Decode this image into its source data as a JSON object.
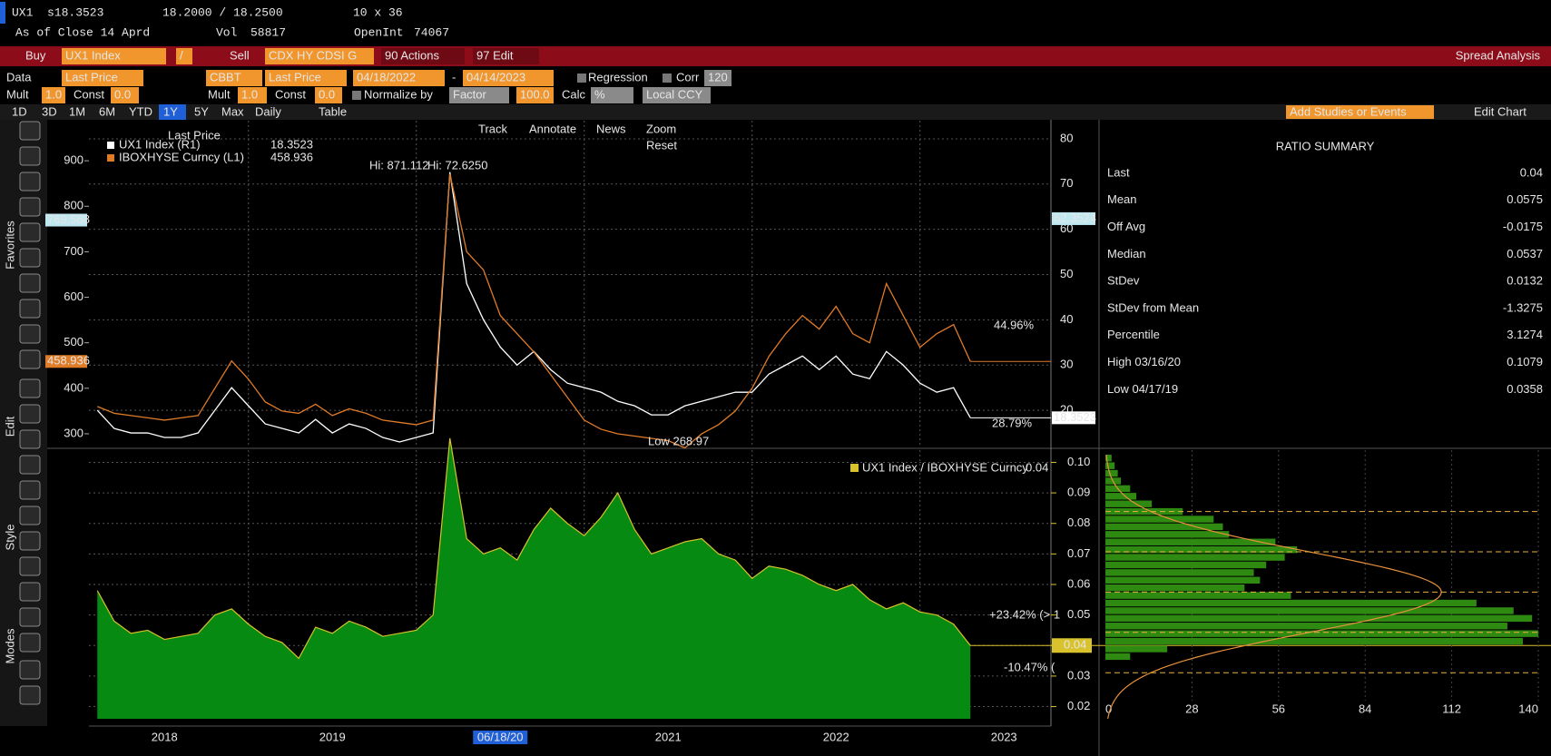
{
  "header": {
    "ticker": "UX1",
    "last": "s18.3523",
    "bid_ask": "18.2000 / 18.2500",
    "size": "10 x 36",
    "as_of": "As of Close 14 Aprd",
    "vol_label": "Vol",
    "vol": "58817",
    "openint_label": "OpenInt",
    "openint": "74067"
  },
  "toolbar": {
    "row_trade": [
      {
        "text": "Buy",
        "kind": "label"
      },
      {
        "text": "UX1 Index",
        "kind": "field"
      },
      {
        "text": "/",
        "kind": "field"
      },
      {
        "text": "Sell",
        "kind": "label"
      },
      {
        "text": "CDX HY CDSI G",
        "kind": "field"
      },
      {
        "text": "90 Actions",
        "kind": "button"
      },
      {
        "text": "97 Edit",
        "kind": "button"
      },
      {
        "text": "Spread Analysis",
        "kind": "label"
      }
    ],
    "row_data": [
      {
        "text": "Data",
        "kind": "key"
      },
      {
        "text": "Last Price",
        "kind": "field"
      },
      {
        "text": "CBBT",
        "kind": "field"
      },
      {
        "text": "Last Price",
        "kind": "field"
      },
      {
        "text": "04/18/2022",
        "kind": "field"
      },
      {
        "text": "-",
        "kind": "label"
      },
      {
        "text": "04/14/2023",
        "kind": "field"
      },
      {
        "text": "Regression",
        "kind": "label"
      },
      {
        "text": "Corr",
        "kind": "label"
      },
      {
        "text": "120",
        "kind": "grey"
      }
    ],
    "row_mult": [
      {
        "text": "Mult",
        "kind": "key"
      },
      {
        "text": "1.0",
        "kind": "field"
      },
      {
        "text": "Const",
        "kind": "label"
      },
      {
        "text": "0.0",
        "kind": "field"
      },
      {
        "text": "Mult",
        "kind": "label"
      },
      {
        "text": "1.0",
        "kind": "field"
      },
      {
        "text": "Const",
        "kind": "label"
      },
      {
        "text": "0.0",
        "kind": "field"
      },
      {
        "text": "Normalize by",
        "kind": "label"
      },
      {
        "text": "Factor",
        "kind": "grey"
      },
      {
        "text": "100.0",
        "kind": "field"
      },
      {
        "text": "Calc",
        "kind": "label"
      },
      {
        "text": "%",
        "kind": "grey"
      },
      {
        "text": "Local CCY",
        "kind": "grey"
      }
    ],
    "periods": [
      "1D",
      "3D",
      "1M",
      "6M",
      "YTD",
      "1Y",
      "5Y",
      "Max",
      "Daily",
      "Table"
    ],
    "active_period": "1Y",
    "studies": "Add Studies or Events",
    "edit_chart": "Edit Chart"
  },
  "side_labels": [
    "Favorites",
    "Edit",
    "Style",
    "Modes"
  ],
  "chart_tools": [
    "Track",
    "Annotate",
    "News",
    "Zoom",
    "Reset"
  ],
  "chart_data": [
    {
      "type": "line",
      "legend_title": "Last Price",
      "x": [
        2018.1,
        2018.2,
        2018.3,
        2018.4,
        2018.5,
        2018.6,
        2018.7,
        2018.8,
        2018.9,
        2019.0,
        2019.1,
        2019.2,
        2019.3,
        2019.4,
        2019.5,
        2019.6,
        2019.7,
        2019.8,
        2019.9,
        2020.0,
        2020.1,
        2020.2,
        2020.3,
        2020.4,
        2020.5,
        2020.6,
        2020.7,
        2020.8,
        2020.9,
        2021.0,
        2021.1,
        2021.2,
        2021.3,
        2021.4,
        2021.5,
        2021.6,
        2021.7,
        2021.8,
        2021.9,
        2022.0,
        2022.1,
        2022.2,
        2022.3,
        2022.4,
        2022.5,
        2022.6,
        2022.7,
        2022.8,
        2022.9,
        2023.0,
        2023.1,
        2023.2,
        2023.3
      ],
      "xlim": [
        2018.05,
        2023.78
      ],
      "xticks": [
        2019,
        2020,
        2021,
        2022,
        2023
      ],
      "ylim": [
        272,
        988
      ],
      "yticks": [
        300,
        400,
        500,
        600,
        700,
        800,
        900
      ],
      "y2lim": [
        12,
        84
      ],
      "y2ticks": [
        20,
        30,
        40,
        50,
        60,
        70,
        80
      ],
      "grid": true,
      "series": [
        {
          "name": "UX1 Index  (R1)",
          "legend_value": 18.3523,
          "color": "#ffffff",
          "axis": "y2",
          "values": [
            20,
            16,
            15,
            15,
            14,
            14,
            15,
            20,
            25,
            21,
            17,
            16,
            15,
            18,
            15,
            17,
            16,
            14,
            13,
            14,
            15,
            72.625,
            48,
            40,
            34,
            30,
            33,
            29,
            26,
            25,
            24,
            22,
            21,
            19,
            19,
            21,
            22,
            23,
            24,
            24,
            28,
            30,
            32,
            29,
            32,
            28,
            27,
            33,
            30,
            26,
            24,
            25,
            18.3523
          ]
        },
        {
          "name": "IBOXHYSE Curncy  (L1)",
          "legend_value": 458.936,
          "color": "#e07b28",
          "axis": "y",
          "values": [
            360,
            345,
            340,
            335,
            330,
            335,
            340,
            400,
            460,
            420,
            370,
            350,
            345,
            365,
            340,
            355,
            345,
            330,
            325,
            320,
            330,
            871.112,
            700,
            660,
            560,
            520,
            480,
            430,
            380,
            330,
            310,
            300,
            295,
            290,
            285,
            268.97,
            300,
            320,
            350,
            400,
            470,
            520,
            560,
            530,
            580,
            520,
            500,
            630,
            560,
            490,
            520,
            540,
            458.936
          ]
        }
      ],
      "markers_left": [
        769.568,
        458.936
      ],
      "markers_right": [
        62.3524,
        18.3523
      ],
      "annotations": [
        "Hi: 871.112",
        "Hi: 72.6250",
        "Low 268.97",
        "44.96%",
        "28.79%"
      ]
    },
    {
      "type": "area",
      "x": [
        2018.1,
        2018.2,
        2018.3,
        2018.4,
        2018.5,
        2018.6,
        2018.7,
        2018.8,
        2018.9,
        2019.0,
        2019.1,
        2019.2,
        2019.3,
        2019.4,
        2019.5,
        2019.6,
        2019.7,
        2019.8,
        2019.9,
        2020.0,
        2020.1,
        2020.2,
        2020.3,
        2020.4,
        2020.5,
        2020.6,
        2020.7,
        2020.8,
        2020.9,
        2021.0,
        2021.1,
        2021.2,
        2021.3,
        2021.4,
        2021.5,
        2021.6,
        2021.7,
        2021.8,
        2021.9,
        2022.0,
        2022.1,
        2022.2,
        2022.3,
        2022.4,
        2022.5,
        2022.6,
        2022.7,
        2022.8,
        2022.9,
        2023.0,
        2023.1,
        2023.2,
        2023.3
      ],
      "xlim": [
        2018.05,
        2023.78
      ],
      "xticks": [
        2018,
        2019,
        {
          "value": 2020,
          "label": "06/18/20"
        },
        2021,
        2022,
        2023
      ],
      "ylim": [
        0.016,
        0.104
      ],
      "yticks": [
        0.02,
        0.03,
        0.04,
        0.05,
        0.06,
        0.07,
        0.08,
        0.09,
        {
          "value": 0.1,
          "label": "0.10"
        }
      ],
      "grid": true,
      "series": [
        {
          "name": "UX1 Index / IBOXHYSE Curncy",
          "legend_value": 0.04,
          "color": "#d9c22c",
          "fill": "#078a12",
          "values": [
            0.058,
            0.048,
            0.044,
            0.045,
            0.042,
            0.043,
            0.044,
            0.05,
            0.052,
            0.047,
            0.043,
            0.041,
            0.0358,
            0.046,
            0.044,
            0.048,
            0.046,
            0.043,
            0.044,
            0.045,
            0.05,
            0.1079,
            0.075,
            0.07,
            0.072,
            0.068,
            0.078,
            0.085,
            0.08,
            0.076,
            0.082,
            0.09,
            0.078,
            0.07,
            0.072,
            0.074,
            0.075,
            0.07,
            0.068,
            0.062,
            0.066,
            0.065,
            0.063,
            0.06,
            0.058,
            0.06,
            0.055,
            0.052,
            0.054,
            0.051,
            0.05,
            0.047,
            0.04
          ]
        }
      ],
      "last_value": 0.04,
      "annotations": [
        "+23.42% (> 1",
        "-10.47% ("
      ]
    },
    {
      "type": "histogram",
      "orientation": "horizontal",
      "color": "#2f8a12",
      "fit_color": "#e8903a",
      "bins": [
        0.035,
        0.0375,
        0.04,
        0.0425,
        0.045,
        0.0475,
        0.05,
        0.0525,
        0.055,
        0.0575,
        0.06,
        0.0625,
        0.065,
        0.0675,
        0.07,
        0.0725,
        0.075,
        0.0775,
        0.08,
        0.0825,
        0.085,
        0.0875,
        0.09,
        0.0925,
        0.095,
        0.0975,
        0.1,
        0.1025
      ],
      "counts": [
        8,
        20,
        135,
        140,
        130,
        138,
        132,
        120,
        60,
        45,
        50,
        48,
        52,
        58,
        62,
        55,
        40,
        38,
        35,
        25,
        15,
        10,
        8,
        5,
        4,
        3,
        2
      ],
      "xlim": [
        0,
        140
      ],
      "xticks": [
        0,
        28,
        56,
        84,
        112,
        140
      ],
      "ylim": [
        0.016,
        0.104
      ]
    }
  ],
  "ratio_summary": {
    "title": "RATIO SUMMARY",
    "rows": [
      {
        "label": "Last",
        "value": 0.04,
        "color": "#ffffff"
      },
      {
        "label": "Mean",
        "value": 0.0575,
        "color": "#ffffff"
      },
      {
        "label": "Off Avg",
        "value": -0.0175,
        "color": "#ffffff"
      },
      {
        "label": "Median",
        "value": 0.0537,
        "color": "#e8973a"
      },
      {
        "label": "StDev",
        "value": 0.0132,
        "color": "#e8973a"
      },
      {
        "label": "StDev from Mean",
        "value": -1.3275,
        "color": "#e8973a"
      },
      {
        "label": "Percentile",
        "value": 3.1274,
        "color": "#e8973a"
      },
      {
        "label": "High 03/16/20",
        "value": 0.1079,
        "color": "#e8973a"
      },
      {
        "label": "Low 04/17/19",
        "value": 0.0358,
        "color": "#e8973a"
      }
    ]
  }
}
